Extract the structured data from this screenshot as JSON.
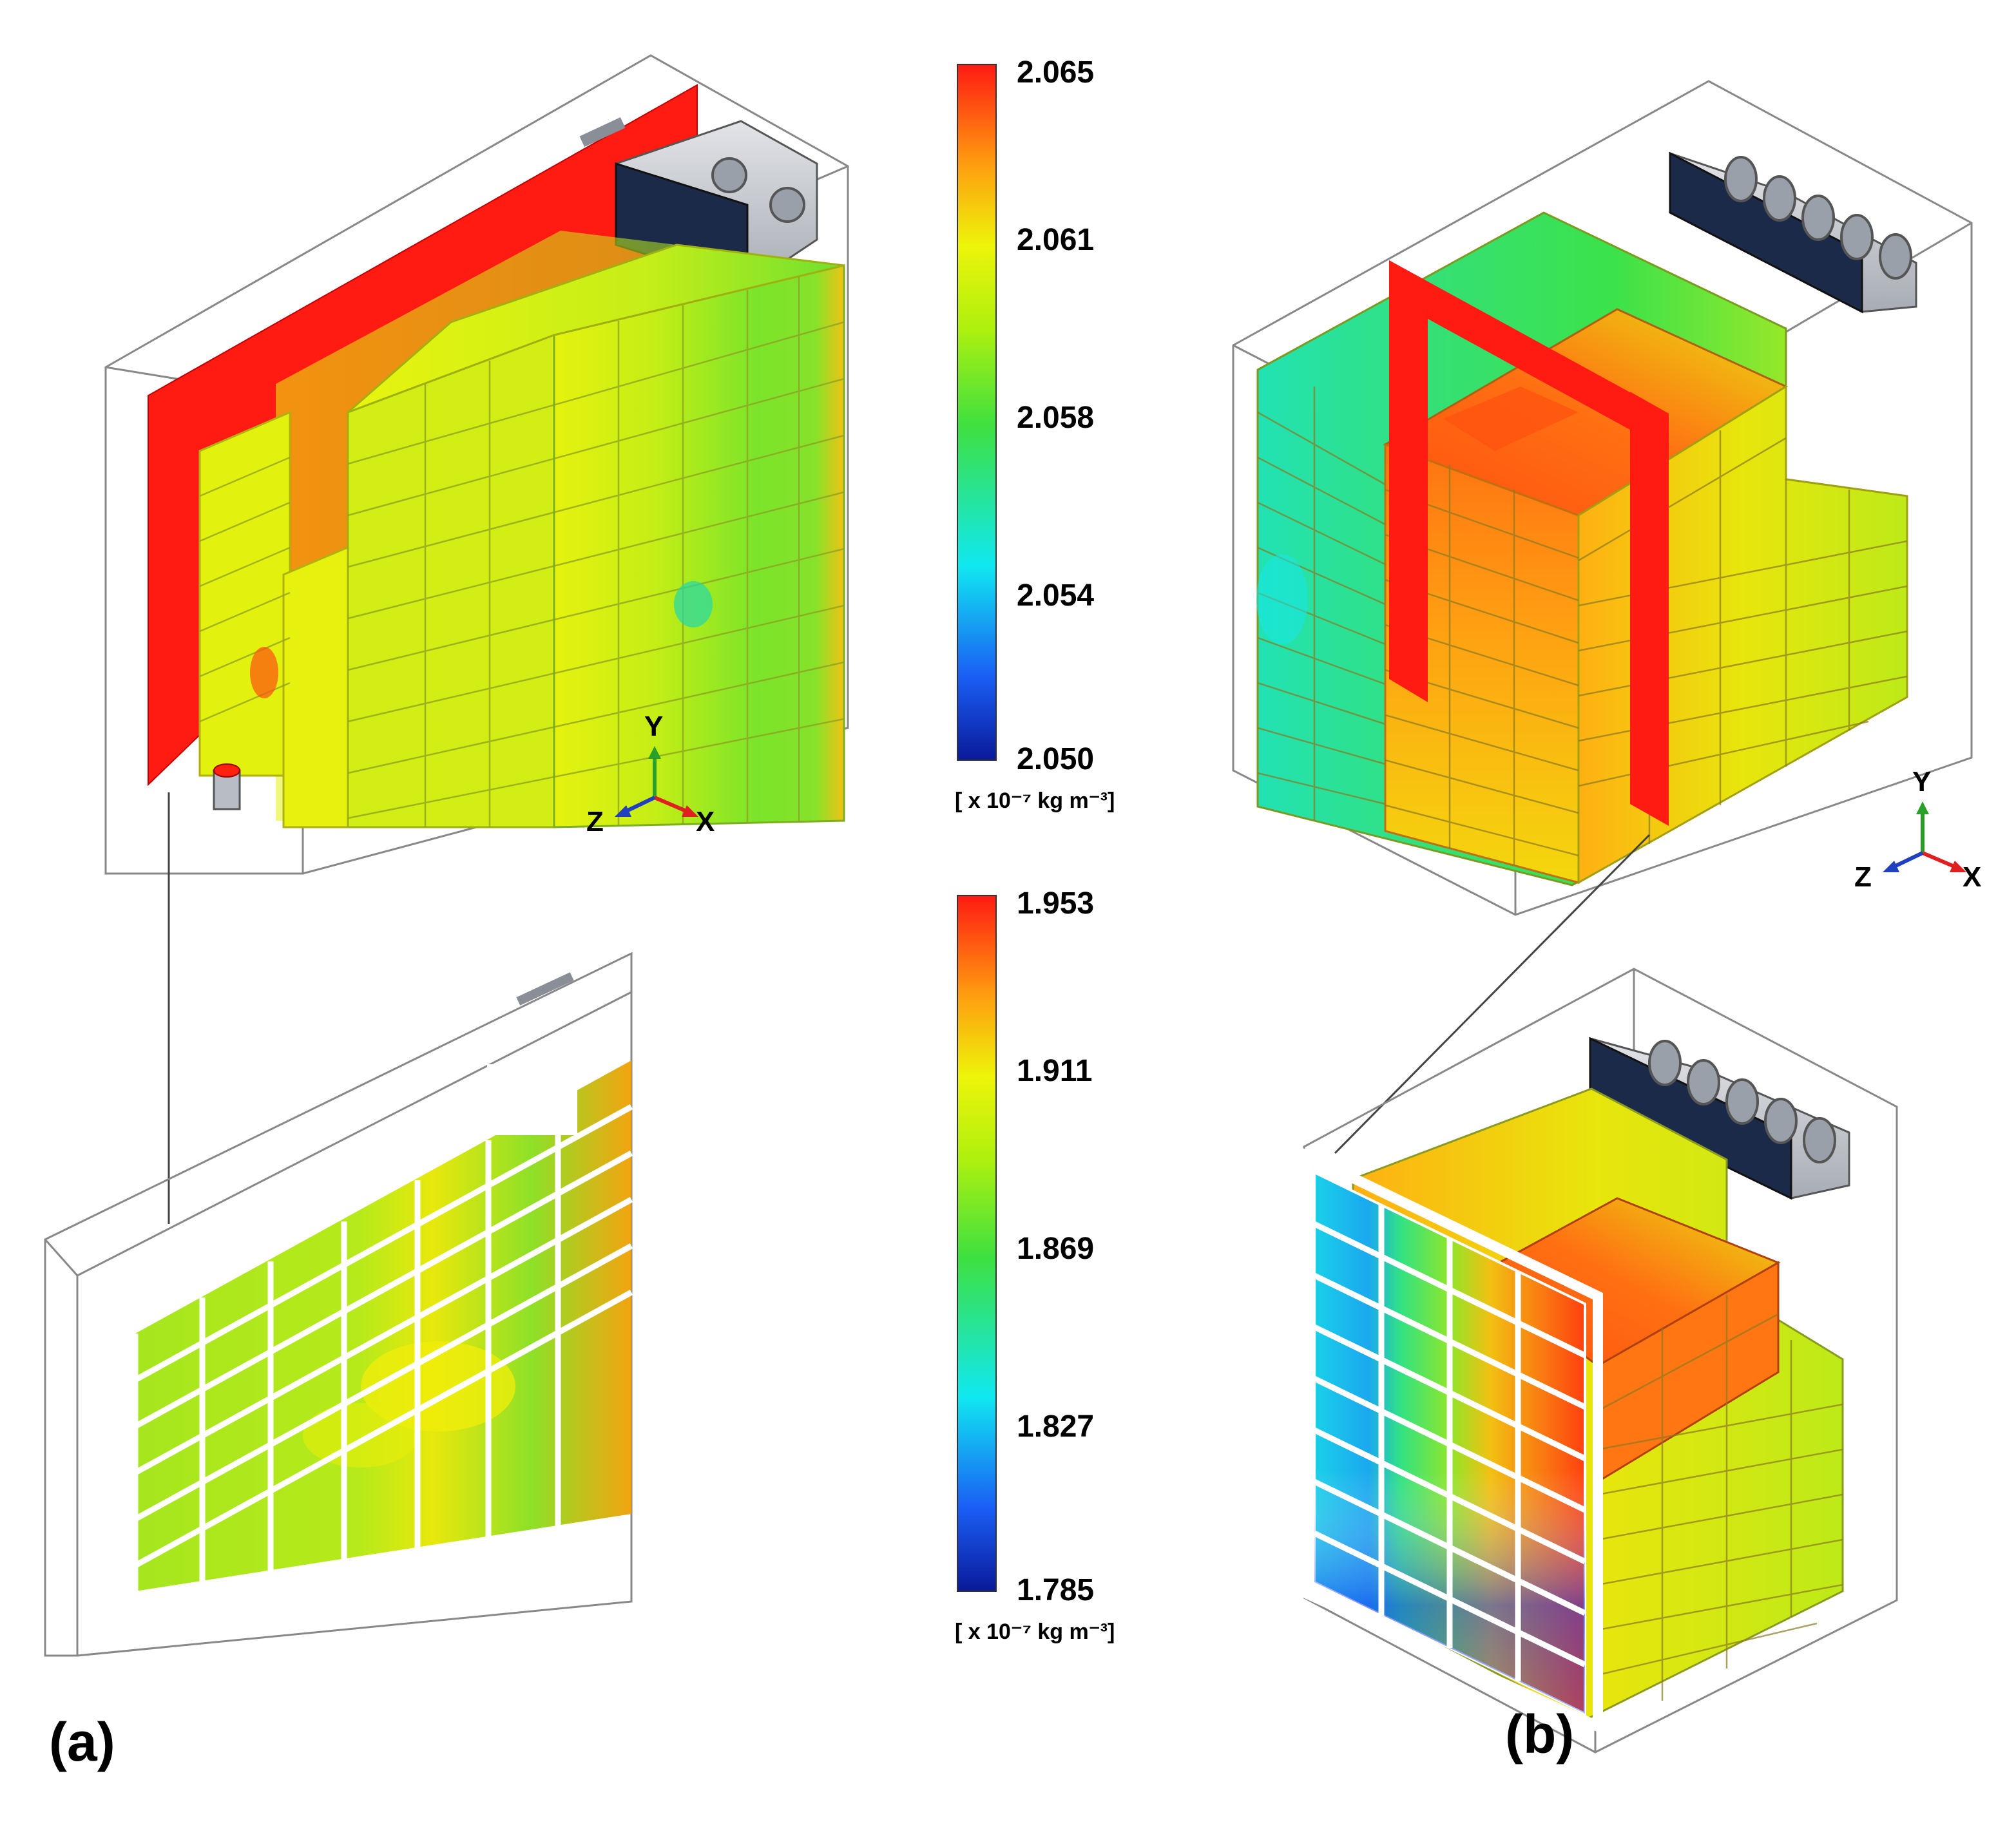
{
  "figure": {
    "panel_labels": {
      "a": "(a)",
      "b": "(b)"
    },
    "colorbars": [
      {
        "ticks": [
          "2.065",
          "2.061",
          "2.058",
          "2.054",
          "2.050"
        ],
        "unit": "[ x 10⁻⁷ kg m⁻³]",
        "range": [
          2.05,
          2.065
        ]
      },
      {
        "ticks": [
          "1.953",
          "1.911",
          "1.869",
          "1.827",
          "1.785"
        ],
        "unit": "[ x 10⁻⁷ kg m⁻³]",
        "range": [
          1.785,
          1.953
        ]
      }
    ],
    "axes": {
      "x": "X",
      "y": "Y",
      "z": "Z"
    },
    "colors": {
      "red": "#ff1a12",
      "orange": "#ff7a10",
      "yellow": "#e8f50a",
      "green": "#4fe02a",
      "cyan": "#10f0f0",
      "blue": "#1a3cf0",
      "navy": "#101060",
      "duct_face": "#1c2a4a",
      "duct_side": "#c8ccd4"
    }
  }
}
